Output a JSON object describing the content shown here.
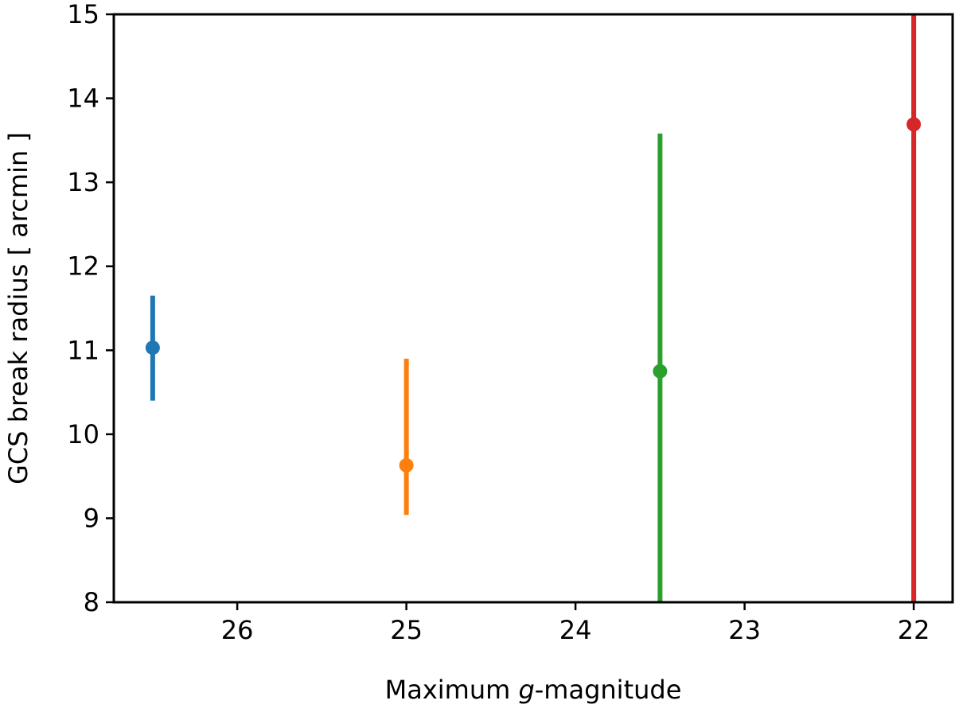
{
  "chart_data": {
    "type": "scatter",
    "title": "",
    "xlabel_pre": "Maximum ",
    "xlabel_italic": "g",
    "xlabel_post": "-magnitude",
    "ylabel": "GCS break radius [ arcmin ]",
    "xlim": [
      26.73,
      21.77
    ],
    "ylim": [
      8,
      15
    ],
    "x_inverted": true,
    "grid": false,
    "legend": "none",
    "xticks": [
      26,
      25,
      24,
      23,
      22
    ],
    "yticks": [
      8,
      9,
      10,
      11,
      12,
      13,
      14,
      15
    ],
    "points": [
      {
        "x": 26.5,
        "y": 11.03,
        "ylow": 10.4,
        "yhigh": 11.65,
        "color": "#1f77b4"
      },
      {
        "x": 25.0,
        "y": 9.63,
        "ylow": 9.04,
        "yhigh": 10.9,
        "color": "#ff7f0e"
      },
      {
        "x": 23.5,
        "y": 10.75,
        "ylow": 8.0,
        "yhigh": 13.58,
        "color": "#2ca02c"
      },
      {
        "x": 22.0,
        "y": 13.69,
        "ylow": 8.0,
        "yhigh": 15.0,
        "color": "#d62728"
      }
    ]
  }
}
